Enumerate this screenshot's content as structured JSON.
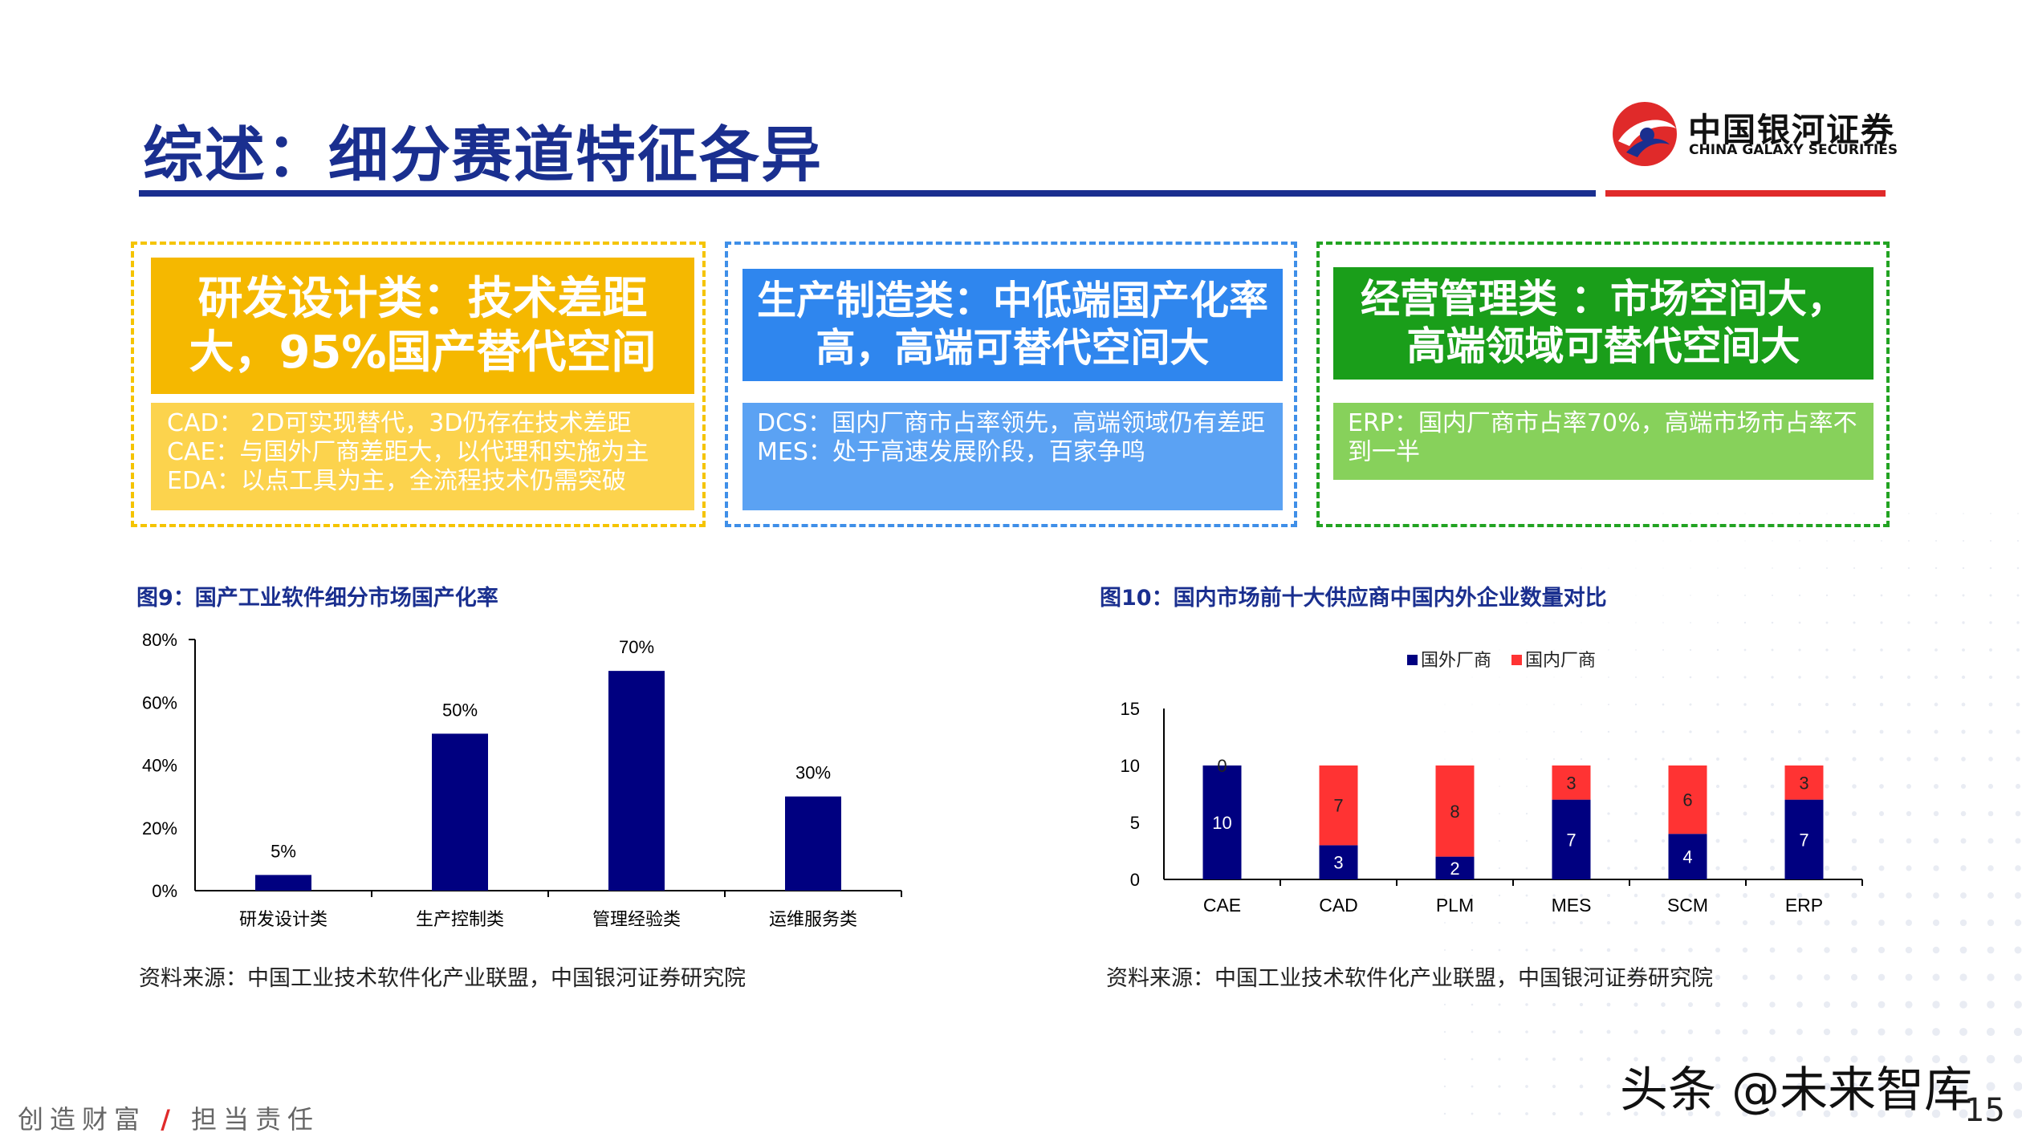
{
  "header": {
    "title": "综述：细分赛道特征各异",
    "logo_cn": "中国银河证券",
    "logo_en": "CHINA GALAXY SECURITIES"
  },
  "panels": [
    {
      "heading": "研发设计类：技术差距大，95%国产替代空间",
      "lines": [
        "CAD： 2D可实现替代，3D仍存在技术差距",
        "CAE：与国外厂商差距大，以代理和实施为主",
        "EDA：以点工具为主，全流程技术仍需突破"
      ]
    },
    {
      "heading": "生产制造类：中低端国产化率高，高端可替代空间大",
      "lines": [
        "DCS：国内厂商市占率领先，高端领域仍有差距",
        "MES：处于高速发展阶段，百家争鸣"
      ]
    },
    {
      "heading": "经营管理类 ：市场空间大，高端领域可替代空间大",
      "lines": [
        "ERP：国内厂商市占率70%，高端市场市占率不到一半"
      ]
    }
  ],
  "figures": [
    {
      "title": "图9：国产工业软件细分市场国产化率",
      "source": "资料来源：中国工业技术软件化产业联盟，中国银河证券研究院"
    },
    {
      "title": "图10：国内市场前十大供应商中国内外企业数量对比",
      "source": "资料来源：中国工业技术软件化产业联盟，中国银河证券研究院"
    }
  ],
  "chart_data": [
    {
      "type": "bar",
      "title": "图9：国产工业软件细分市场国产化率",
      "categories": [
        "研发设计类",
        "生产控制类",
        "管理经验类",
        "运维服务类"
      ],
      "values": [
        5,
        50,
        70,
        30
      ],
      "value_labels": [
        "5%",
        "50%",
        "70%",
        "30%"
      ],
      "yticks": [
        "0%",
        "20%",
        "40%",
        "60%",
        "80%"
      ],
      "ylim": [
        0,
        80
      ],
      "color": "#000080"
    },
    {
      "type": "bar",
      "stacked": true,
      "title": "图10：国内市场前十大供应商中国内外企业数量对比",
      "categories": [
        "CAE",
        "CAD",
        "PLM",
        "MES",
        "SCM",
        "ERP"
      ],
      "series": [
        {
          "name": "国外厂商",
          "values": [
            10,
            3,
            2,
            7,
            4,
            7
          ],
          "color": "#000080"
        },
        {
          "name": "国内厂商",
          "values": [
            0,
            7,
            8,
            3,
            6,
            3
          ],
          "color": "#ff3333"
        }
      ],
      "yticks": [
        "0",
        "5",
        "10",
        "15"
      ],
      "ylim": [
        0,
        15
      ],
      "legend": "top"
    }
  ],
  "footer": {
    "slogan_a": "创造财富",
    "slogan_sep": "/",
    "slogan_b": "担当责任",
    "watermark": "头条 @未来智库",
    "page": "15"
  }
}
